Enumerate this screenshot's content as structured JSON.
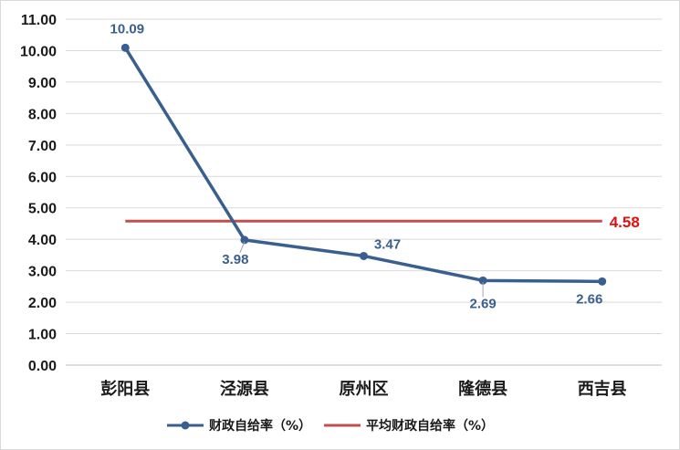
{
  "chart_data": {
    "type": "line",
    "categories": [
      "彭阳县",
      "泾源县",
      "原州区",
      "隆德县",
      "西吉县"
    ],
    "series": [
      {
        "name": "财政自给率（%）",
        "values": [
          10.09,
          3.98,
          3.47,
          2.69,
          2.66
        ],
        "labels": [
          "10.09",
          "3.98",
          "3.47",
          "2.69",
          "2.66"
        ],
        "color": "#3a5f8f"
      },
      {
        "name": "平均财政自给率（%）",
        "values": [
          4.58,
          4.58,
          4.58,
          4.58,
          4.58
        ],
        "label": "4.58",
        "color": "#c0504d"
      }
    ],
    "ylim": [
      0,
      11
    ],
    "yticks": [
      "0.00",
      "1.00",
      "2.00",
      "3.00",
      "4.00",
      "5.00",
      "6.00",
      "7.00",
      "8.00",
      "9.00",
      "10.00",
      "11.00"
    ],
    "grid": true,
    "legend_position": "bottom",
    "avg_label_color": "#e01010"
  }
}
